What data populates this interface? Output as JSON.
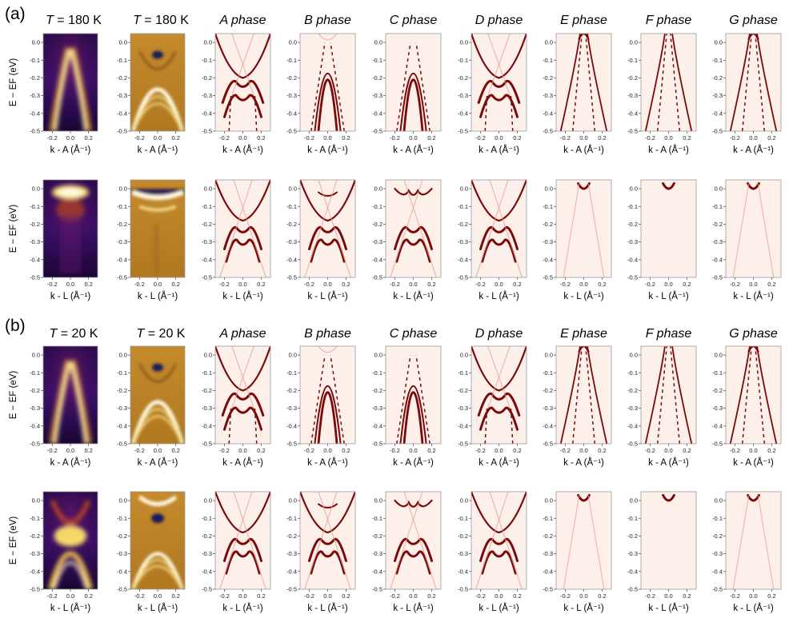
{
  "panel_labels": [
    "(a)",
    "(b)"
  ],
  "chart_data": {
    "type": "heatmap",
    "sections": [
      {
        "label": "(a)",
        "titles": [
          {
            "pre": "T",
            "post": " = 180 K",
            "italic": false
          },
          {
            "pre": "T",
            "post": " = 180 K",
            "italic": false
          },
          {
            "text": "A phase",
            "italic": true
          },
          {
            "text": "B phase",
            "italic": true
          },
          {
            "text": "C phase",
            "italic": true
          },
          {
            "text": "D phase",
            "italic": true
          },
          {
            "text": "E phase",
            "italic": true
          },
          {
            "text": "F phase",
            "italic": true
          },
          {
            "text": "G phase",
            "italic": true
          }
        ]
      },
      {
        "label": "(b)",
        "titles": [
          {
            "pre": "T",
            "post": " = 20 K",
            "italic": false
          },
          {
            "pre": "T",
            "post": " = 20 K",
            "italic": false
          },
          {
            "text": "A phase",
            "italic": true
          },
          {
            "text": "B phase",
            "italic": true
          },
          {
            "text": "C phase",
            "italic": true
          },
          {
            "text": "D phase",
            "italic": true
          },
          {
            "text": "E phase",
            "italic": true
          },
          {
            "text": "F phase",
            "italic": true
          },
          {
            "text": "G phase",
            "italic": true
          }
        ]
      }
    ],
    "rows": [
      {
        "section": 0,
        "direction": "A"
      },
      {
        "section": 0,
        "direction": "L"
      },
      {
        "section": 1,
        "direction": "A"
      },
      {
        "section": 1,
        "direction": "L"
      }
    ],
    "ylabel": "E − EF (eV)",
    "y_ticks": [
      "0.0",
      "-0.1",
      "-0.2",
      "-0.3",
      "-0.4",
      "-0.5"
    ],
    "y_range": [
      -0.5,
      0.05
    ],
    "x_ticks": [
      "-0.2",
      "0.0",
      "0.2"
    ],
    "x_range": [
      -0.3,
      0.3
    ],
    "xlabels": {
      "A": "k - A (Å⁻¹)",
      "L": "k - L (Å⁻¹)"
    },
    "columns": [
      {
        "kind": "arpes",
        "colormap": "inferno"
      },
      {
        "kind": "arpes-second-derivative",
        "colormap": "gold"
      },
      {
        "kind": "calculation",
        "phase": "A",
        "background": "#fdf0ea",
        "band_color": "#7a0a0a"
      },
      {
        "kind": "calculation",
        "phase": "B",
        "background": "#fdf0ea",
        "band_color": "#7a0a0a"
      },
      {
        "kind": "calculation",
        "phase": "C",
        "background": "#fdf0ea",
        "band_color": "#7a0a0a"
      },
      {
        "kind": "calculation",
        "phase": "D",
        "background": "#fdf0ea",
        "band_color": "#7a0a0a"
      },
      {
        "kind": "calculation",
        "phase": "E",
        "background": "#fdf0ea",
        "band_color": "#7a0a0a"
      },
      {
        "kind": "calculation",
        "phase": "F",
        "background": "#fdf0ea",
        "band_color": "#7a0a0a"
      },
      {
        "kind": "calculation",
        "phase": "G",
        "background": "#fdf0ea",
        "band_color": "#7a0a0a"
      }
    ]
  }
}
